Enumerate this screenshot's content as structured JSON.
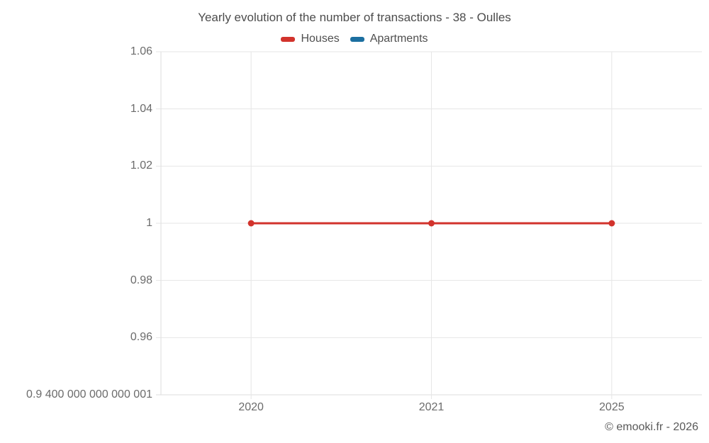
{
  "footer": {
    "copyright": "© emooki.fr - 2026"
  },
  "colors": {
    "grid": "#e6e6e6",
    "axis": "#dedede",
    "houses": "#d2332c",
    "apartments": "#1c6fa0",
    "title_text": "#4c4c4c",
    "label_text": "#6b6b6b"
  },
  "chart_data": {
    "type": "line",
    "title": "Yearly evolution of the number of transactions - 38 - Oulles",
    "categories": [
      "2020",
      "2021",
      "2025"
    ],
    "series": [
      {
        "name": "Houses",
        "color": "#d2332c",
        "values": [
          1,
          1,
          1
        ]
      },
      {
        "name": "Apartments",
        "color": "#1c6fa0",
        "values": []
      }
    ],
    "xlabel": "",
    "ylabel": "",
    "ylim": [
      0.94,
      1.06
    ],
    "y_ticks": [
      {
        "value": 1.06,
        "label": "1.06"
      },
      {
        "value": 1.04,
        "label": "1.04"
      },
      {
        "value": 1.02,
        "label": "1.02"
      },
      {
        "value": 1.0,
        "label": "1"
      },
      {
        "value": 0.98,
        "label": "0.98"
      },
      {
        "value": 0.96,
        "label": "0.96"
      },
      {
        "value": 0.94,
        "label": "0.9 400 000 000 000 001"
      }
    ],
    "grid": true,
    "legend_position": "top"
  }
}
